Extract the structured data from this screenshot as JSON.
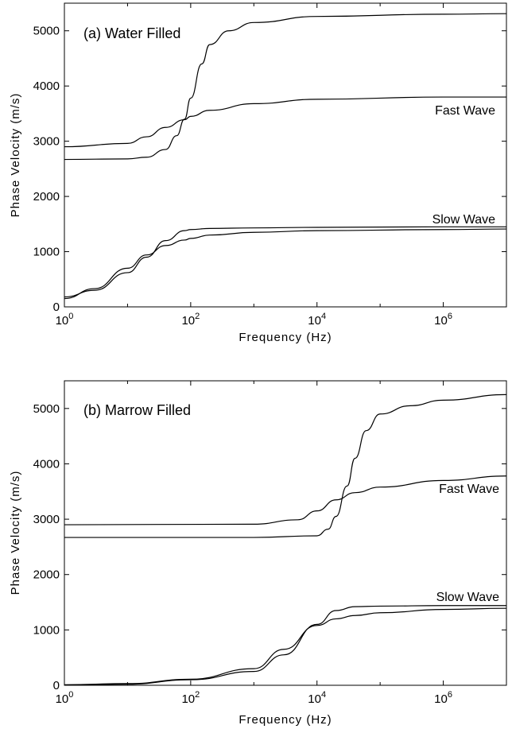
{
  "chart_data": [
    {
      "type": "line",
      "panel_label": "(a) Water Filled",
      "xlabel": "Frequency (Hz)",
      "ylabel": "Phase Velocity (m/s)",
      "x_scale": "log",
      "xlim": [
        1,
        10000000
      ],
      "ylim": [
        0,
        5500
      ],
      "x_ticks": [
        {
          "base": "10",
          "exp": "0"
        },
        {
          "base": "10",
          "exp": "2"
        },
        {
          "base": "10",
          "exp": "4"
        },
        {
          "base": "10",
          "exp": "6"
        }
      ],
      "y_ticks": [
        "0",
        "1000",
        "2000",
        "3000",
        "4000",
        "5000"
      ],
      "series_labels": [
        "Fast Wave",
        "Slow Wave"
      ],
      "series": [
        {
          "x": [
            1,
            10,
            20,
            40,
            60,
            80,
            100,
            150,
            200,
            400,
            1000,
            10000,
            1000000,
            10000000
          ],
          "values": [
            2670,
            2680,
            2710,
            2850,
            3100,
            3400,
            3780,
            4400,
            4750,
            5000,
            5150,
            5260,
            5300,
            5310
          ]
        },
        {
          "x": [
            1,
            10,
            20,
            40,
            80,
            100,
            200,
            1000,
            10000,
            1000000,
            10000000
          ],
          "values": [
            2900,
            2960,
            3080,
            3250,
            3390,
            3450,
            3560,
            3680,
            3760,
            3800,
            3800
          ]
        },
        {
          "x": [
            1,
            3,
            10,
            20,
            40,
            80,
            100,
            200,
            1000,
            10000,
            1000000,
            10000000
          ],
          "values": [
            180,
            300,
            620,
            900,
            1200,
            1380,
            1400,
            1420,
            1430,
            1440,
            1450,
            1450
          ]
        },
        {
          "x": [
            1,
            3,
            10,
            20,
            40,
            80,
            100,
            200,
            1000,
            10000,
            1000000,
            10000000
          ],
          "values": [
            150,
            330,
            700,
            940,
            1110,
            1210,
            1240,
            1300,
            1350,
            1380,
            1400,
            1410
          ]
        }
      ]
    },
    {
      "type": "line",
      "panel_label": "(b) Marrow Filled",
      "xlabel": "Frequency (Hz)",
      "ylabel": "Phase Velocity (m/s)",
      "x_scale": "log",
      "xlim": [
        1,
        10000000
      ],
      "ylim": [
        0,
        5500
      ],
      "x_ticks": [
        {
          "base": "10",
          "exp": "0"
        },
        {
          "base": "10",
          "exp": "2"
        },
        {
          "base": "10",
          "exp": "4"
        },
        {
          "base": "10",
          "exp": "6"
        }
      ],
      "y_ticks": [
        "0",
        "1000",
        "2000",
        "3000",
        "4000",
        "5000"
      ],
      "series_labels": [
        "Fast Wave",
        "Slow Wave"
      ],
      "series": [
        {
          "x": [
            1,
            1000,
            10000,
            15000,
            20000,
            30000,
            40000,
            60000,
            100000,
            300000,
            1000000,
            10000000
          ],
          "values": [
            2670,
            2670,
            2700,
            2820,
            3050,
            3600,
            4100,
            4600,
            4900,
            5050,
            5150,
            5250
          ]
        },
        {
          "x": [
            1,
            1000,
            5000,
            10000,
            20000,
            40000,
            100000,
            1000000,
            10000000
          ],
          "values": [
            2900,
            2910,
            2990,
            3150,
            3350,
            3480,
            3580,
            3700,
            3780
          ]
        },
        {
          "x": [
            1,
            10,
            100,
            1000,
            3000,
            10000,
            20000,
            40000,
            100000,
            1000000,
            10000000
          ],
          "values": [
            5,
            20,
            100,
            250,
            550,
            1100,
            1350,
            1420,
            1430,
            1440,
            1440
          ]
        },
        {
          "x": [
            1,
            10,
            100,
            1000,
            3000,
            10000,
            20000,
            40000,
            100000,
            1000000,
            10000000
          ],
          "values": [
            10,
            30,
            110,
            300,
            650,
            1080,
            1200,
            1260,
            1310,
            1370,
            1390
          ]
        }
      ]
    }
  ]
}
